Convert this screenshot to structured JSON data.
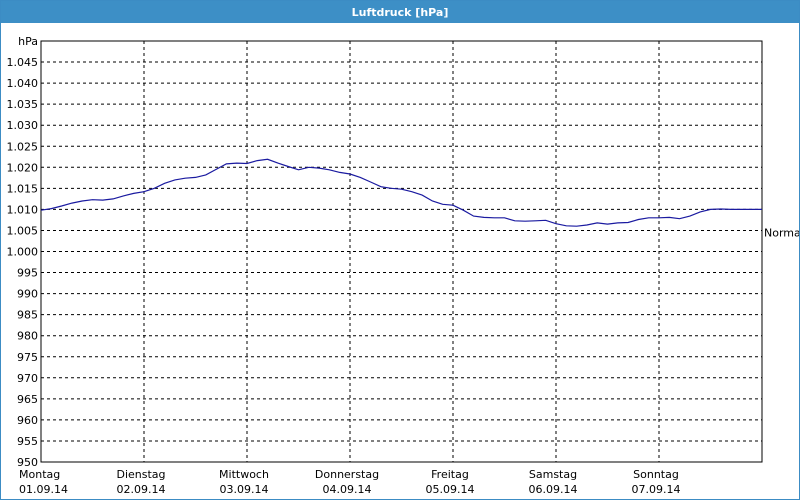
{
  "window": {
    "title": "Luftdruck [hPa]"
  },
  "chart_data": {
    "type": "line",
    "title": "Luftdruck [hPa]",
    "ylabel": "hPa",
    "xlabel": "",
    "ylim": [
      950,
      1050
    ],
    "yticks": [
      "950",
      "955",
      "960",
      "965",
      "970",
      "975",
      "980",
      "985",
      "990",
      "995",
      "1.000",
      "1.005",
      "1.010",
      "1.015",
      "1.020",
      "1.025",
      "1.030",
      "1.035",
      "1.040",
      "1.045"
    ],
    "ytick_values": [
      950,
      955,
      960,
      965,
      970,
      975,
      980,
      985,
      990,
      995,
      1000,
      1005,
      1010,
      1015,
      1020,
      1025,
      1030,
      1035,
      1040,
      1045
    ],
    "xlim": [
      0,
      7
    ],
    "categories": [
      {
        "day": "Montag",
        "date": "01.09.14"
      },
      {
        "day": "Dienstag",
        "date": "02.09.14"
      },
      {
        "day": "Mittwoch",
        "date": "03.09.14"
      },
      {
        "day": "Donnerstag",
        "date": "04.09.14"
      },
      {
        "day": "Freitag",
        "date": "05.09.14"
      },
      {
        "day": "Samstag",
        "date": "06.09.14"
      },
      {
        "day": "Sonntag",
        "date": "07.09.14"
      }
    ],
    "grid": true,
    "line_color": "#1a1aa0",
    "series": [
      {
        "x": [
          0,
          0.1,
          0.2,
          0.3,
          0.4,
          0.5,
          0.6,
          0.7,
          0.8,
          0.9,
          1.0,
          1.1,
          1.2,
          1.3,
          1.4,
          1.5,
          1.6,
          1.7,
          1.8,
          1.9,
          2.0,
          2.1,
          2.2,
          2.3,
          2.4,
          2.5,
          2.6,
          2.7,
          2.8,
          2.9,
          3.0,
          3.1,
          3.2,
          3.3,
          3.4,
          3.5,
          3.6,
          3.7,
          3.8,
          3.9,
          4.0,
          4.1,
          4.2,
          4.3,
          4.4,
          4.5,
          4.6,
          4.7,
          4.8,
          4.9,
          5.0,
          5.1,
          5.2,
          5.3,
          5.4,
          5.5,
          5.6,
          5.7,
          5.8,
          5.9,
          6.0,
          6.1,
          6.2,
          6.3,
          6.4,
          6.5,
          6.6,
          6.7,
          6.8,
          6.9,
          7.0
        ],
        "values": [
          1009.8,
          1010.2,
          1010.8,
          1011.5,
          1012.0,
          1012.3,
          1012.2,
          1012.5,
          1013.2,
          1013.8,
          1014.2,
          1015.0,
          1016.2,
          1017.0,
          1017.4,
          1017.6,
          1018.2,
          1019.5,
          1020.8,
          1021.0,
          1020.9,
          1021.6,
          1021.9,
          1021.0,
          1020.2,
          1019.4,
          1020.0,
          1019.8,
          1019.4,
          1018.8,
          1018.4,
          1017.6,
          1016.5,
          1015.4,
          1015.0,
          1014.8,
          1014.2,
          1013.4,
          1012.0,
          1011.2,
          1011.0,
          1009.8,
          1008.4,
          1008.1,
          1008.0,
          1008.0,
          1007.3,
          1007.2,
          1007.3,
          1007.4,
          1006.6,
          1006.1,
          1006.0,
          1006.3,
          1006.8,
          1006.5,
          1006.8,
          1006.9,
          1007.6,
          1008.0,
          1008.0,
          1008.1,
          1007.8,
          1008.4,
          1009.4,
          1010.0,
          1010.1,
          1010.0,
          1010.0,
          1010.0,
          1010.0
        ]
      }
    ],
    "reference_label": "Normal",
    "reference_value": 1004.5
  }
}
